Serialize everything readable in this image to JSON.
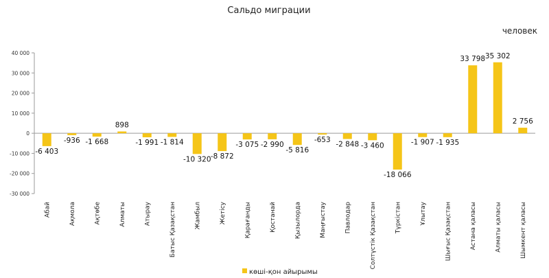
{
  "chart_data": {
    "type": "bar",
    "title": "Сальдо миграции",
    "unit": "человек",
    "categories": [
      "Абай",
      "Ақмола",
      "Ақтөбе",
      "Алматы",
      "Атырау",
      "Батыс Қазақстан",
      "Жамбыл",
      "Жетісу",
      "Қарағанды",
      "Қостанай",
      "Қызылорда",
      "Маңғыстау",
      "Павлодар",
      "Солтүстік Қазақстан",
      "Түркістан",
      "Ұлытау",
      "Шығыс Қазақстан",
      "Астана қаласы",
      "Алматы қаласы",
      "Шымкент қаласы"
    ],
    "series": [
      {
        "name": "көші-қон айырымы",
        "color": "#F5C518",
        "values": [
          -6403,
          -936,
          -1668,
          898,
          -1991,
          -1814,
          -10320,
          -8872,
          -3075,
          -2990,
          -5816,
          -653,
          -2848,
          -3460,
          -18066,
          -1907,
          -1935,
          33798,
          35302,
          2756
        ],
        "labels": [
          "-6 403",
          "-936",
          "-1 668",
          "898",
          "-1 991",
          "-1 814",
          "-10 320",
          "-8 872",
          "-3 075",
          "-2 990",
          "-5 816",
          "-653",
          "-2 848",
          "-3 460",
          "-18 066",
          "-1 907",
          "-1 935",
          "33 798",
          "35 302",
          "2 756"
        ]
      }
    ],
    "ylim": [
      -30000,
      40000
    ],
    "yticks": [
      -30000,
      -20000,
      -10000,
      0,
      10000,
      20000,
      30000,
      40000
    ],
    "ytick_labels": [
      "-30 000",
      "-20 000",
      "-10 000",
      "0",
      "10 000",
      "20 000",
      "30 000",
      "40 000"
    ],
    "grid": false,
    "legend_position": "bottom"
  }
}
